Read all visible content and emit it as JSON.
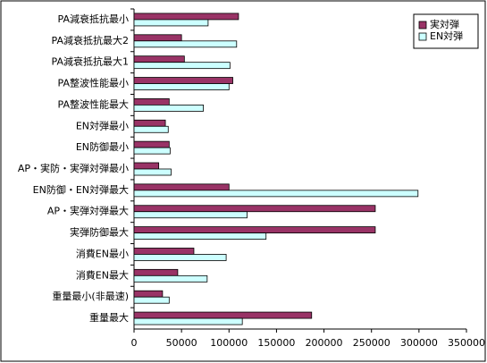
{
  "chart_data": {
    "type": "hbar",
    "categories": [
      "PA減衰抵抗最小",
      "PA減衰抵抗最大2",
      "PA減衰抵抗最大1",
      "PA整波性能最小",
      "PA整波性能最大",
      "EN対弾最小",
      "EN防御最小",
      "AP・実防・実弾対弾最小",
      "EN防御・EN対弾最大",
      "AP・実弾対弾最大",
      "実弾防御最大",
      "消費EN最小",
      "消費EN最大",
      "重量最小(非最速)",
      "重量最大"
    ],
    "series": [
      {
        "name": "実対弾",
        "color": "#993366",
        "values": [
          110000,
          50000,
          53000,
          104000,
          37000,
          33000,
          37000,
          26000,
          100000,
          254000,
          254000,
          63000,
          46000,
          30000,
          187000
        ]
      },
      {
        "name": "EN対弾",
        "color": "#ccffff",
        "values": [
          78000,
          108000,
          101000,
          100000,
          73000,
          36000,
          38000,
          39000,
          299000,
          119000,
          139000,
          97000,
          77000,
          37000,
          114000
        ]
      }
    ],
    "xlim": [
      0,
      350000
    ],
    "xticks": [
      0,
      50000,
      100000,
      150000,
      200000,
      250000,
      300000,
      350000
    ],
    "legend": "top-right"
  }
}
